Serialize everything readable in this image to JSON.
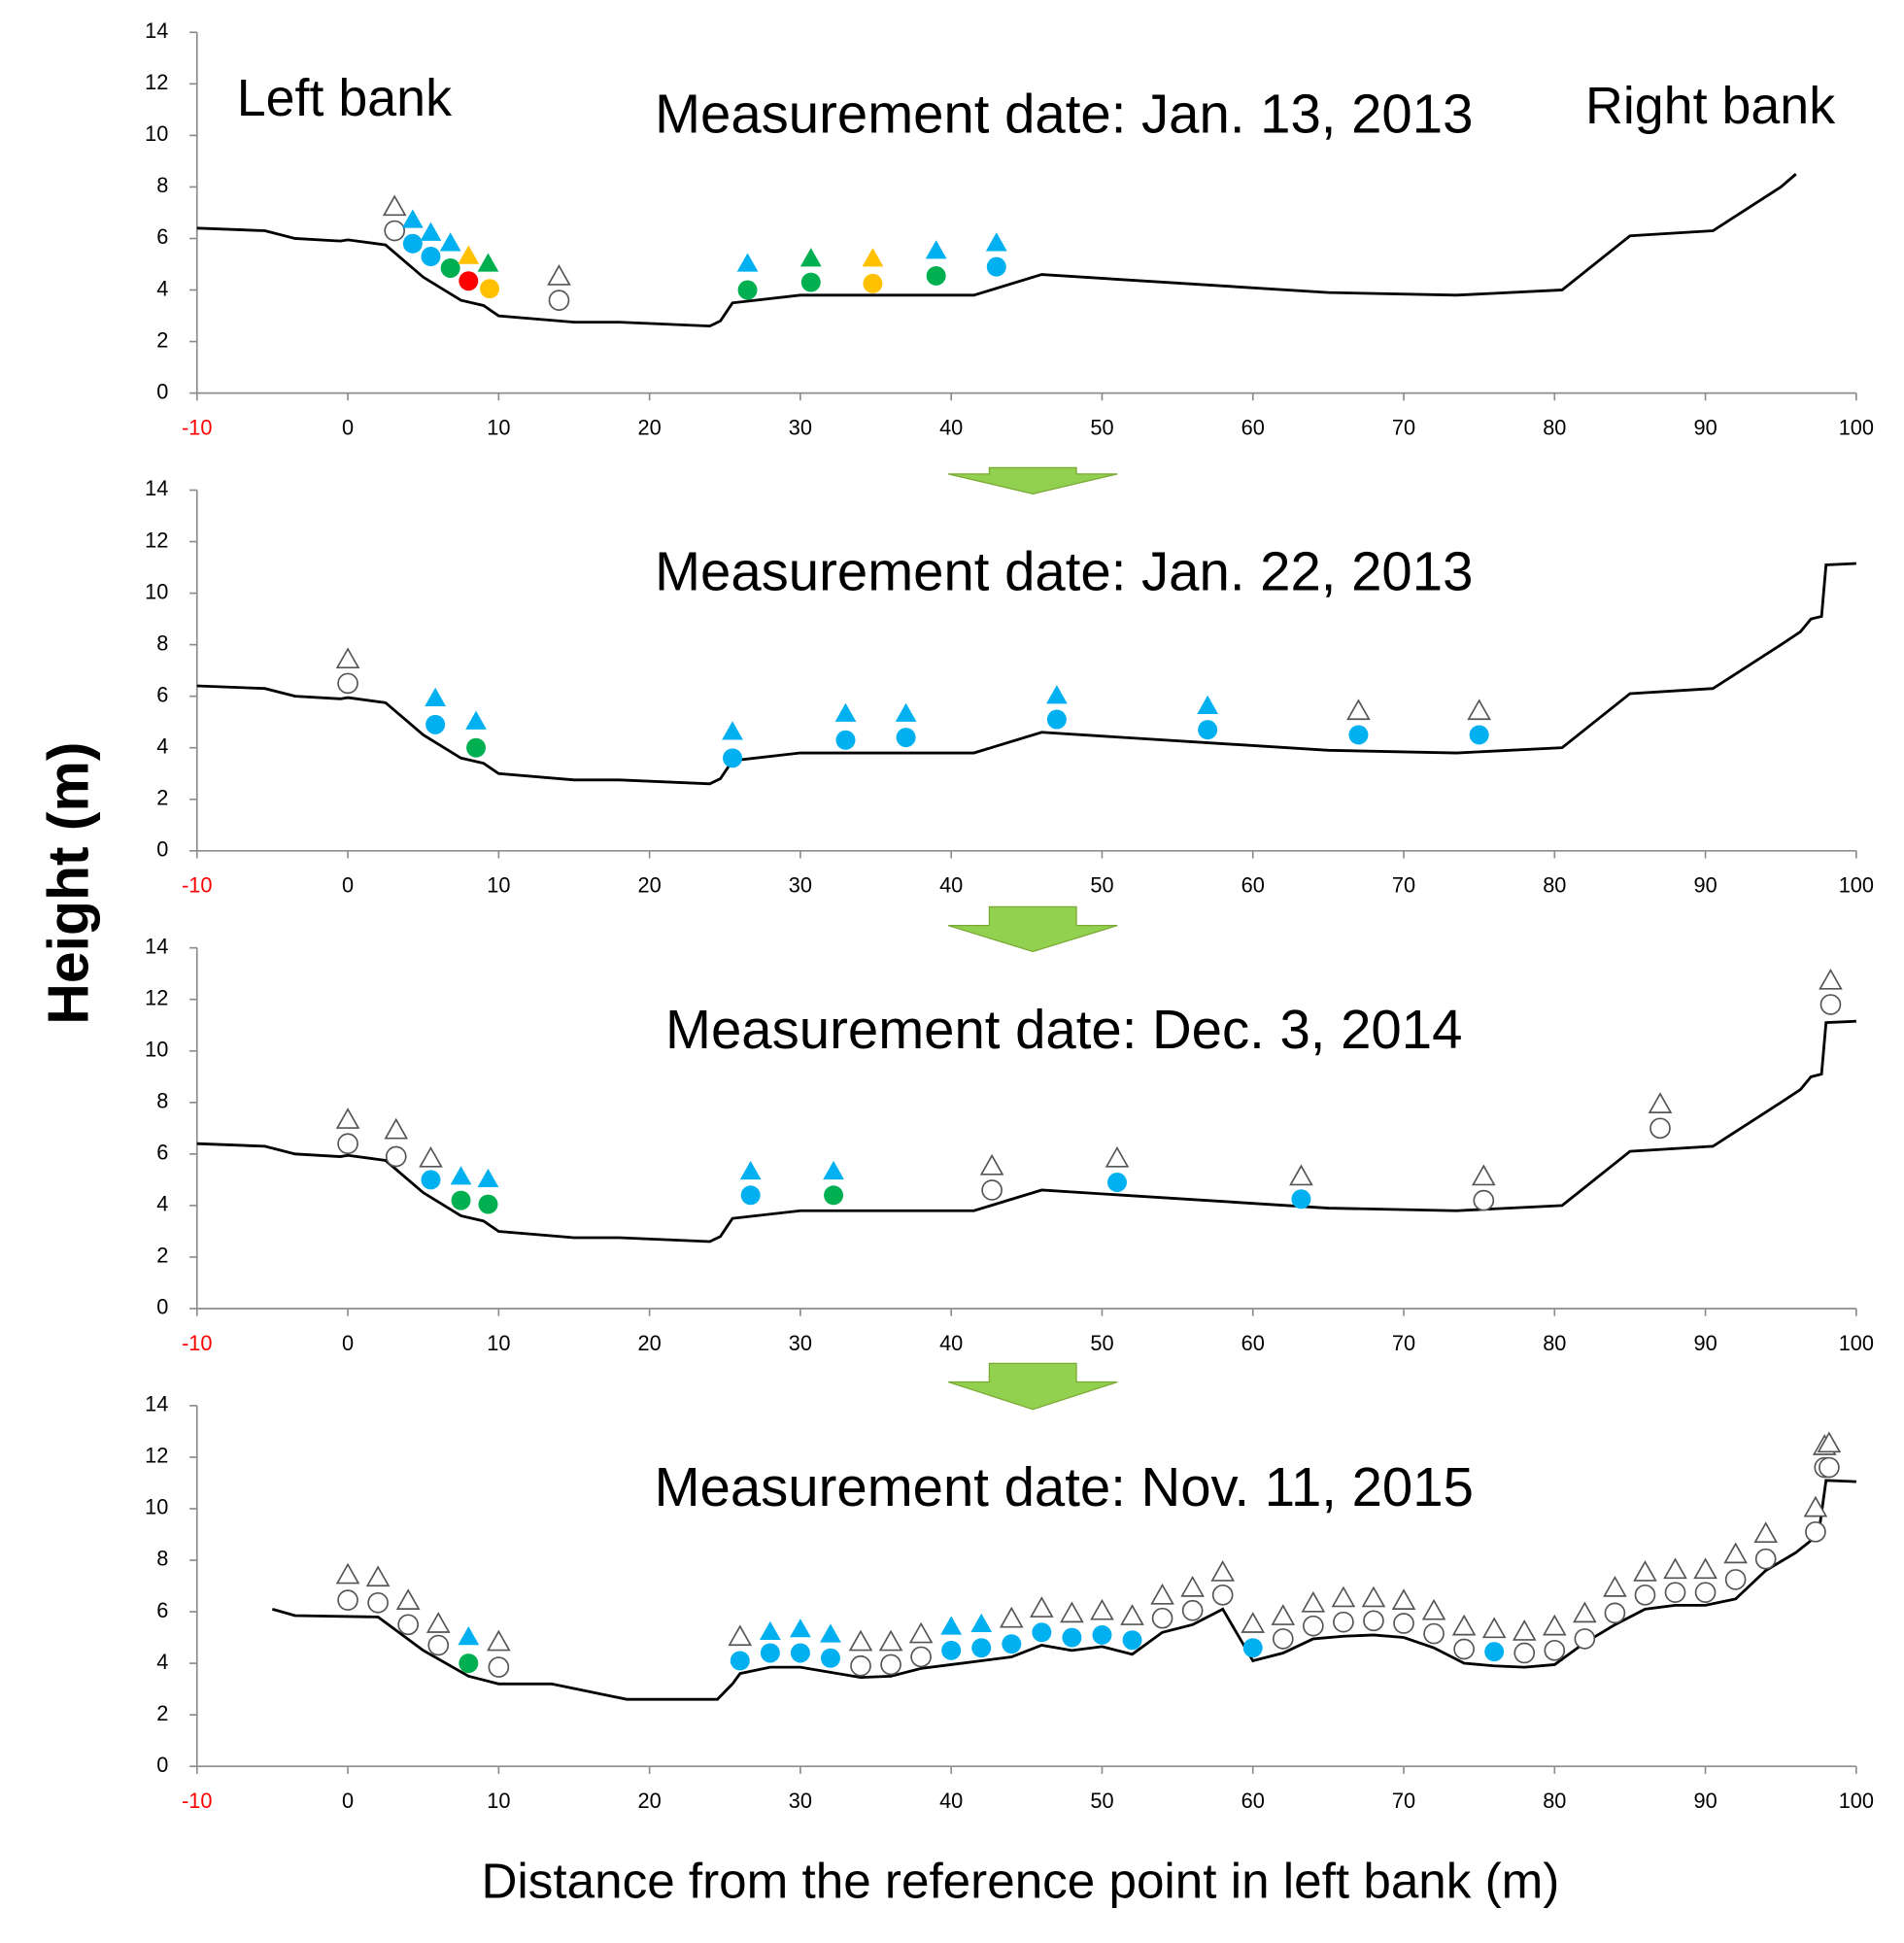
{
  "ylabel": "Height  (m)",
  "xlabel": "Distance from the reference point in left bank (m)",
  "chart_data": [
    {
      "type": "line",
      "title": "Measurement date: Jan. 13, 2013",
      "annotations": [
        "Left bank",
        "Right bank"
      ],
      "xlim": [
        -10,
        100
      ],
      "ylim": [
        0,
        14
      ],
      "xticks": [
        -10,
        0,
        10,
        20,
        30,
        40,
        50,
        60,
        70,
        80,
        90,
        100
      ],
      "xtick_colors": [
        "#ff0000",
        "#000000",
        "#000000",
        "#000000",
        "#000000",
        "#000000",
        "#000000",
        "#000000",
        "#000000",
        "#000000",
        "#000000",
        "#000000"
      ],
      "yticks": [
        0,
        2,
        4,
        6,
        8,
        10,
        12,
        14
      ],
      "profile": {
        "color": "#000000",
        "x": [
          -10,
          -5.5,
          -3.5,
          -0.5,
          0,
          2.5,
          5,
          7.5,
          9,
          10,
          15,
          18,
          24,
          24.7,
          25.5,
          30,
          41.5,
          46,
          65,
          73.5,
          80.5,
          85,
          90.5,
          95,
          96
        ],
        "y": [
          6.4,
          6.3,
          6.0,
          5.9,
          5.95,
          5.75,
          4.5,
          3.6,
          3.4,
          3.0,
          2.75,
          2.75,
          2.6,
          2.8,
          3.5,
          3.8,
          3.8,
          4.6,
          3.9,
          3.8,
          4.0,
          6.1,
          6.3,
          8.0,
          8.5
        ]
      },
      "series": [
        {
          "marker": "triangle",
          "color": "none",
          "x": [
            3.1,
            14
          ],
          "y": [
            7.2,
            4.5
          ]
        },
        {
          "marker": "circle",
          "color": "none",
          "x": [
            3.1,
            14
          ],
          "y": [
            6.3,
            3.6
          ]
        },
        {
          "marker": "triangle",
          "color": "#00b0f0",
          "x": [
            4.3,
            5.5,
            6.8,
            26.5,
            39,
            43
          ],
          "y": [
            6.7,
            6.2,
            5.8,
            5.0,
            5.5,
            5.8
          ]
        },
        {
          "marker": "circle",
          "color": "#00b0f0",
          "x": [
            4.3,
            5.5,
            43
          ],
          "y": [
            5.8,
            5.3,
            4.9
          ]
        },
        {
          "marker": "triangle",
          "color": "#00b050",
          "x": [
            9.3,
            30.7
          ],
          "y": [
            5.0,
            5.2
          ]
        },
        {
          "marker": "circle",
          "color": "#00b050",
          "x": [
            6.8,
            26.5,
            30.7,
            39
          ],
          "y": [
            4.85,
            4.0,
            4.3,
            4.55
          ]
        },
        {
          "marker": "triangle",
          "color": "#ffc000",
          "x": [
            8,
            34.8
          ],
          "y": [
            5.3,
            5.2
          ]
        },
        {
          "marker": "circle",
          "color": "#ffc000",
          "x": [
            9.4,
            34.8
          ],
          "y": [
            4.05,
            4.25
          ]
        },
        {
          "marker": "circle",
          "color": "#ff0000",
          "x": [
            8
          ],
          "y": [
            4.35
          ]
        }
      ]
    },
    {
      "type": "line",
      "title": "Measurement date: Jan. 22, 2013",
      "xlim": [
        -10,
        100
      ],
      "ylim": [
        0,
        14
      ],
      "xticks": [
        -10,
        0,
        10,
        20,
        30,
        40,
        50,
        60,
        70,
        80,
        90,
        100
      ],
      "xtick_colors": [
        "#ff0000",
        "#000000",
        "#000000",
        "#000000",
        "#000000",
        "#000000",
        "#000000",
        "#000000",
        "#000000",
        "#000000",
        "#000000",
        "#000000"
      ],
      "yticks": [
        0,
        2,
        4,
        6,
        8,
        10,
        12,
        14
      ],
      "profile": {
        "color": "#000000",
        "x": [
          -10,
          -5.5,
          -3.5,
          -0.5,
          0,
          2.5,
          5,
          7.5,
          9,
          10,
          15,
          18,
          24,
          24.7,
          25.5,
          30,
          41.5,
          46,
          65,
          73.5,
          80.5,
          85,
          90.5,
          95,
          96.3,
          97,
          97.7,
          98,
          100
        ],
        "y": [
          6.4,
          6.3,
          6.0,
          5.9,
          5.95,
          5.75,
          4.5,
          3.6,
          3.4,
          3.0,
          2.75,
          2.75,
          2.6,
          2.8,
          3.5,
          3.8,
          3.8,
          4.6,
          3.9,
          3.8,
          4.0,
          6.1,
          6.3,
          8.0,
          8.5,
          9.0,
          9.1,
          11.1,
          11.15
        ]
      },
      "series": [
        {
          "marker": "triangle",
          "color": "none",
          "x": [
            0,
            67,
            75
          ],
          "y": [
            7.4,
            5.4,
            5.4
          ]
        },
        {
          "marker": "circle",
          "color": "none",
          "x": [
            0
          ],
          "y": [
            6.5
          ]
        },
        {
          "marker": "triangle",
          "color": "#00b0f0",
          "x": [
            5.8,
            8.5,
            25.5,
            33,
            37,
            47,
            57
          ],
          "y": [
            5.9,
            5.0,
            4.6,
            5.3,
            5.3,
            6.0,
            5.6
          ]
        },
        {
          "marker": "circle",
          "color": "#00b0f0",
          "x": [
            5.8,
            25.5,
            33,
            37,
            47,
            57,
            67,
            75
          ],
          "y": [
            4.9,
            3.6,
            4.3,
            4.4,
            5.1,
            4.7,
            4.5,
            4.5
          ]
        },
        {
          "marker": "circle",
          "color": "#00b050",
          "x": [
            8.5
          ],
          "y": [
            4.0
          ]
        }
      ]
    },
    {
      "type": "line",
      "title": "Measurement date: Dec. 3, 2014",
      "xlim": [
        -10,
        100
      ],
      "ylim": [
        0,
        14
      ],
      "xticks": [
        -10,
        0,
        10,
        20,
        30,
        40,
        50,
        60,
        70,
        80,
        90,
        100
      ],
      "xtick_colors": [
        "#ff0000",
        "#000000",
        "#000000",
        "#000000",
        "#000000",
        "#000000",
        "#000000",
        "#000000",
        "#000000",
        "#000000",
        "#000000",
        "#000000"
      ],
      "yticks": [
        0,
        2,
        4,
        6,
        8,
        10,
        12,
        14
      ],
      "profile": {
        "color": "#000000",
        "x": [
          -10,
          -5.5,
          -3.5,
          -0.5,
          0,
          2.5,
          5,
          7.5,
          9,
          10,
          15,
          18,
          24,
          24.7,
          25.5,
          30,
          41.5,
          46,
          65,
          73.5,
          80.5,
          85,
          90.5,
          95,
          96.3,
          97,
          97.7,
          98,
          100
        ],
        "y": [
          6.4,
          6.3,
          6.0,
          5.9,
          5.95,
          5.75,
          4.5,
          3.6,
          3.4,
          3.0,
          2.75,
          2.75,
          2.6,
          2.8,
          3.5,
          3.8,
          3.8,
          4.6,
          3.9,
          3.8,
          4.0,
          6.1,
          6.3,
          8.0,
          8.5,
          9.0,
          9.1,
          11.1,
          11.15
        ]
      },
      "series": [
        {
          "marker": "triangle",
          "color": "none",
          "x": [
            0,
            3.2,
            5.5,
            42.7,
            51,
            63.2,
            75.3,
            87,
            98.3
          ],
          "y": [
            7.3,
            6.9,
            5.8,
            5.5,
            5.8,
            5.1,
            5.1,
            7.9,
            12.7
          ]
        },
        {
          "marker": "circle",
          "color": "none",
          "x": [
            0,
            3.2,
            42.7,
            75.3,
            87,
            98.3
          ],
          "y": [
            6.4,
            5.9,
            4.6,
            4.2,
            7.0,
            11.8
          ]
        },
        {
          "marker": "triangle",
          "color": "#00b0f0",
          "x": [
            7.5,
            9.3,
            26.7,
            32.2
          ],
          "y": [
            5.1,
            5.0,
            5.3,
            5.3
          ]
        },
        {
          "marker": "circle",
          "color": "#00b0f0",
          "x": [
            5.5,
            26.7,
            51,
            63.2
          ],
          "y": [
            5.0,
            4.4,
            4.9,
            4.25
          ]
        },
        {
          "marker": "circle",
          "color": "#00b050",
          "x": [
            7.5,
            9.3,
            32.2
          ],
          "y": [
            4.2,
            4.05,
            4.4
          ]
        }
      ]
    },
    {
      "type": "line",
      "title": "Measurement date: Nov. 11, 2015",
      "xlim": [
        -10,
        100
      ],
      "ylim": [
        0,
        14
      ],
      "xticks": [
        -10,
        0,
        10,
        20,
        30,
        40,
        50,
        60,
        70,
        80,
        90,
        100
      ],
      "xtick_colors": [
        "#ff0000",
        "#000000",
        "#000000",
        "#000000",
        "#000000",
        "#000000",
        "#000000",
        "#000000",
        "#000000",
        "#000000",
        "#000000",
        "#000000"
      ],
      "yticks": [
        0,
        2,
        4,
        6,
        8,
        10,
        12,
        14
      ],
      "profile": {
        "color": "#000000",
        "x": [
          -5,
          -3.5,
          2,
          5,
          8,
          10,
          13.5,
          18.5,
          24.5,
          25.5,
          26,
          28,
          30,
          32,
          34,
          36,
          38,
          40,
          42,
          44,
          46,
          48,
          50,
          52,
          54,
          56,
          58,
          60,
          62,
          64,
          66,
          68,
          70,
          72,
          74,
          76,
          78,
          80,
          82,
          84,
          86,
          88,
          90,
          92,
          94,
          96,
          97.5,
          98,
          100
        ],
        "y": [
          6.1,
          5.85,
          5.8,
          4.5,
          3.5,
          3.2,
          3.2,
          2.6,
          2.6,
          3.2,
          3.6,
          3.85,
          3.85,
          3.65,
          3.45,
          3.5,
          3.8,
          3.95,
          4.1,
          4.25,
          4.7,
          4.5,
          4.65,
          4.35,
          5.2,
          5.5,
          6.1,
          4.1,
          4.4,
          4.95,
          5.05,
          5.1,
          5.0,
          4.6,
          4.0,
          3.9,
          3.85,
          3.95,
          4.8,
          5.5,
          6.1,
          6.25,
          6.25,
          6.5,
          7.6,
          8.3,
          9.0,
          11.1,
          11.05
        ]
      },
      "series": [
        {
          "marker": "triangle",
          "color": "none",
          "x": [
            0,
            2,
            4,
            6,
            10,
            26,
            34,
            36,
            38,
            44,
            46,
            48,
            50,
            52,
            54,
            56,
            58,
            60,
            62,
            64,
            66,
            68,
            70,
            72,
            74,
            76,
            78,
            80,
            82,
            84,
            86,
            88,
            90,
            92,
            94,
            97.3,
            97.9,
            98.2
          ],
          "y": [
            7.4,
            7.3,
            6.4,
            5.5,
            4.8,
            5.0,
            4.8,
            4.8,
            5.1,
            5.7,
            6.1,
            5.9,
            6.0,
            5.8,
            6.6,
            6.9,
            7.5,
            5.5,
            5.8,
            6.3,
            6.5,
            6.5,
            6.4,
            6.0,
            5.4,
            5.3,
            5.2,
            5.4,
            5.9,
            6.9,
            7.5,
            7.6,
            7.6,
            8.2,
            9.0,
            10.0,
            12.4,
            12.5
          ]
        },
        {
          "marker": "circle",
          "color": "none",
          "x": [
            0,
            2,
            4,
            6,
            10,
            34,
            36,
            38,
            54,
            56,
            58,
            62,
            64,
            66,
            68,
            70,
            72,
            74,
            78,
            80,
            82,
            84,
            86,
            88,
            90,
            92,
            94,
            97.3,
            97.9,
            98.2
          ],
          "y": [
            6.45,
            6.35,
            5.5,
            4.7,
            3.85,
            3.9,
            3.95,
            4.25,
            5.75,
            6.05,
            6.65,
            4.95,
            5.45,
            5.6,
            5.65,
            5.55,
            5.15,
            4.55,
            4.4,
            4.5,
            4.95,
            5.95,
            6.65,
            6.75,
            6.75,
            7.25,
            8.05,
            9.1,
            11.6,
            11.6
          ]
        },
        {
          "marker": "triangle",
          "color": "#00b0f0",
          "x": [
            8,
            28,
            30,
            32,
            40,
            42
          ],
          "y": [
            5.0,
            5.2,
            5.3,
            5.1,
            5.4,
            5.5
          ]
        },
        {
          "marker": "circle",
          "color": "#00b0f0",
          "x": [
            26,
            28,
            30,
            32,
            40,
            42,
            44,
            46,
            48,
            50,
            52,
            60,
            76
          ],
          "y": [
            4.1,
            4.4,
            4.4,
            4.2,
            4.5,
            4.6,
            4.75,
            5.2,
            5.0,
            5.1,
            4.9,
            4.6,
            4.45
          ]
        },
        {
          "marker": "circle",
          "color": "#00b050",
          "x": [
            8
          ],
          "y": [
            4.0
          ]
        }
      ]
    }
  ]
}
